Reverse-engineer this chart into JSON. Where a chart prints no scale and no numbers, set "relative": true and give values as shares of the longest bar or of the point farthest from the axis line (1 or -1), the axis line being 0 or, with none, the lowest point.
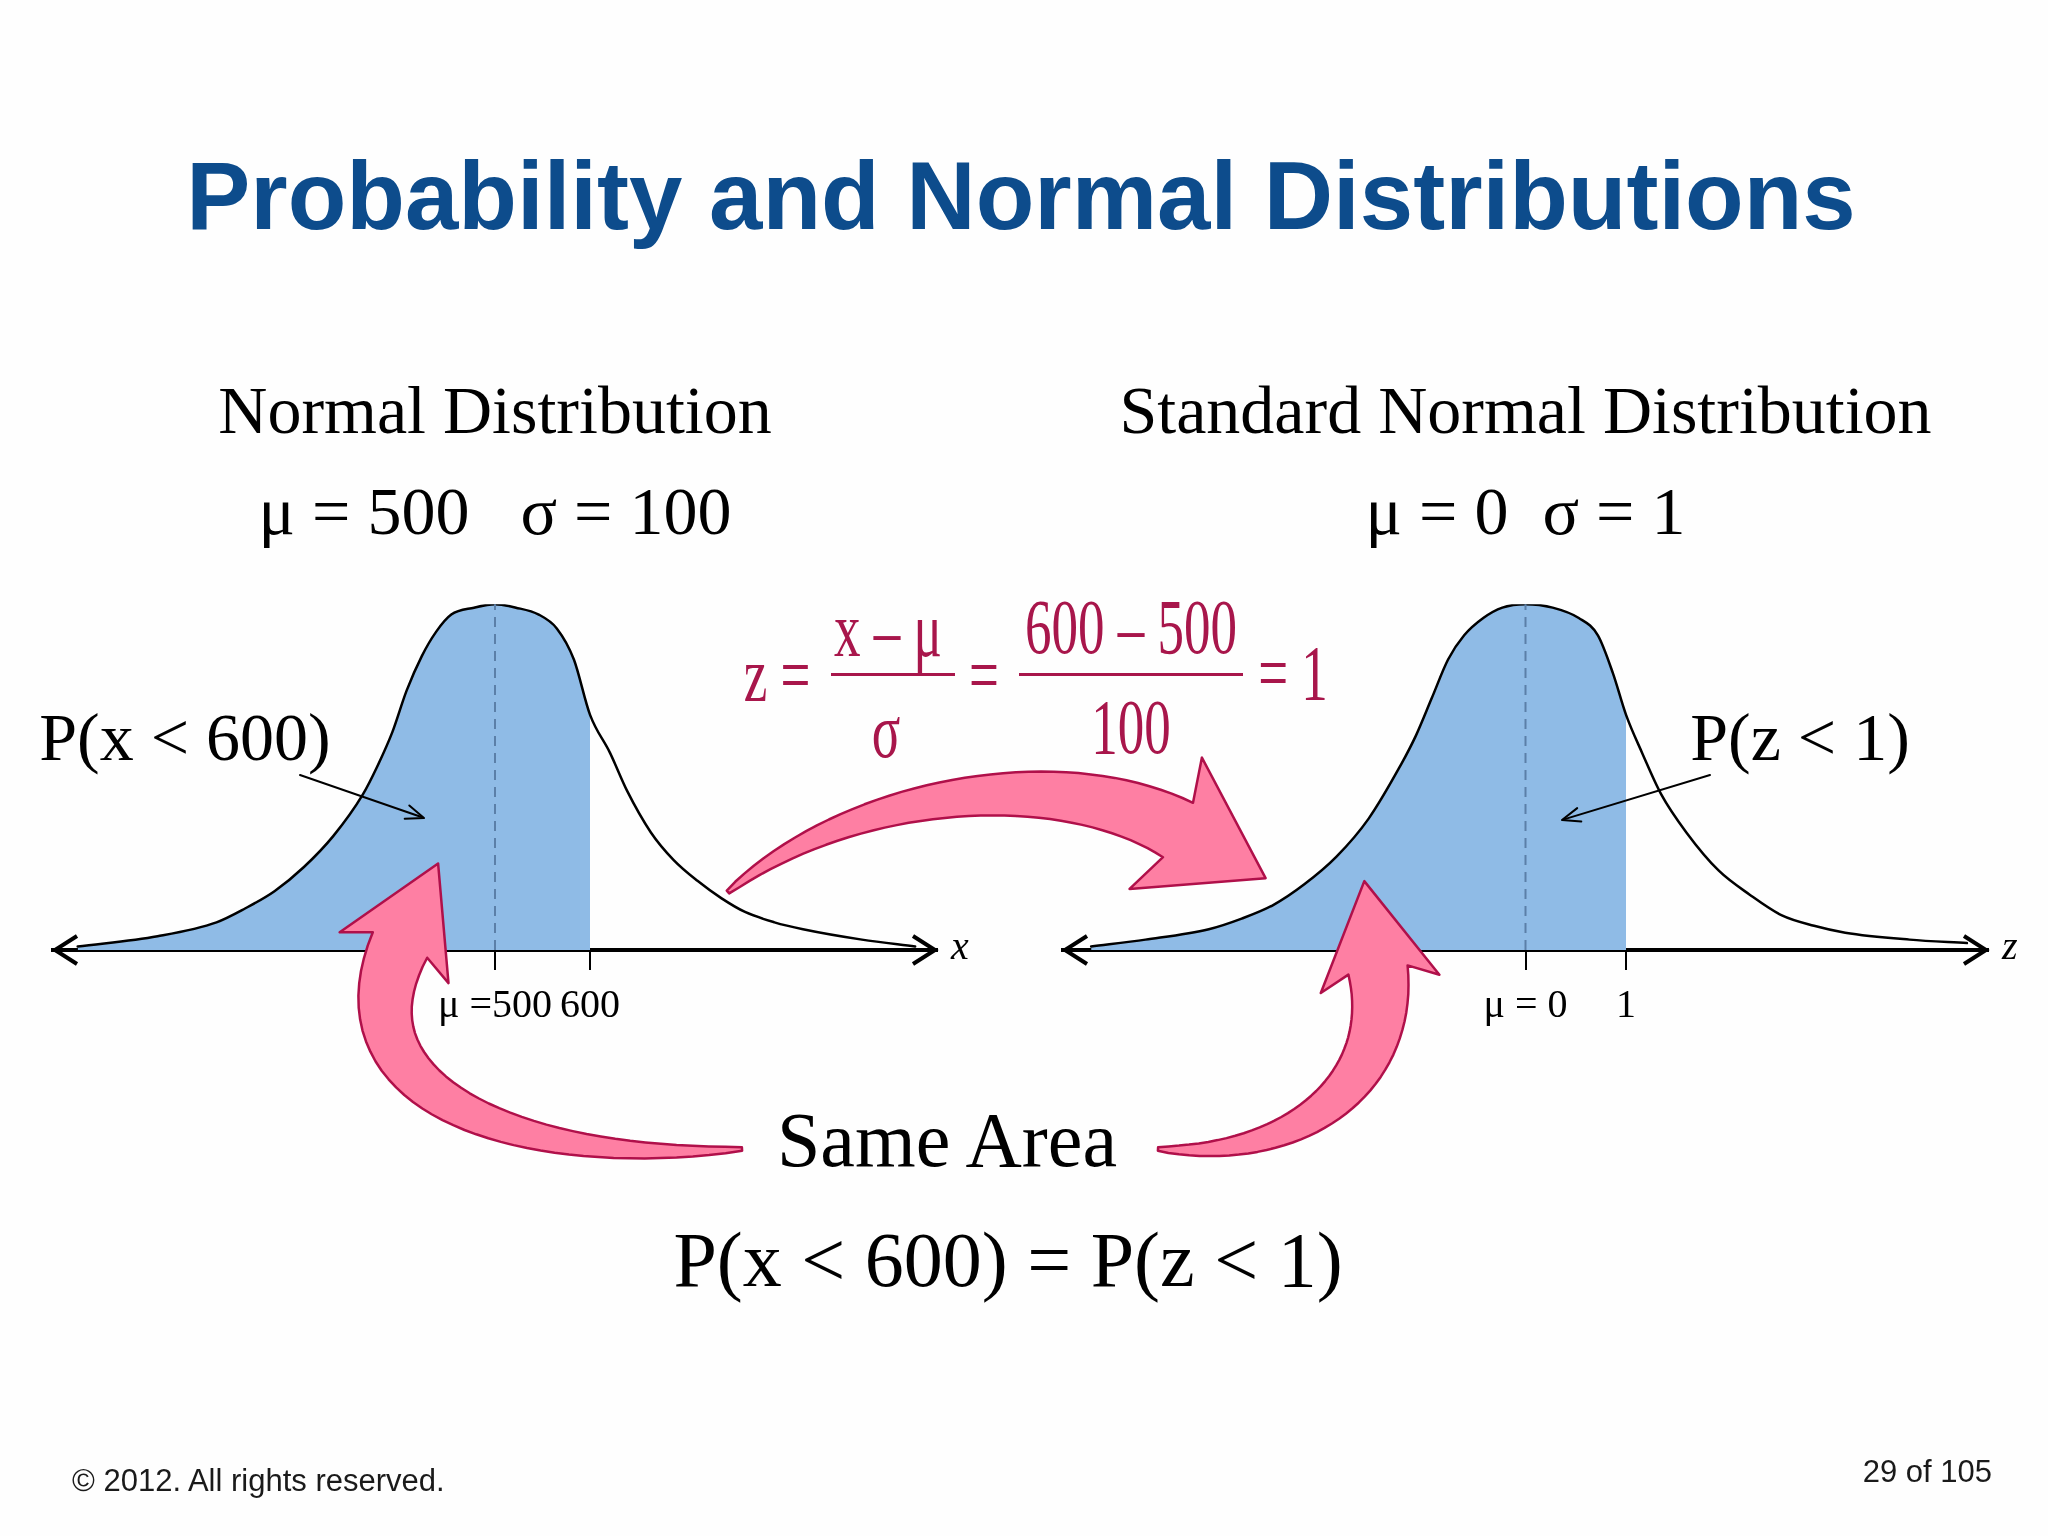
{
  "chart_data": [
    {
      "type": "other",
      "title": "Probability and Normal Distributions",
      "annotations": [
        "z =",
        "x – μ",
        "σ",
        "=",
        "600 – 500",
        "100",
        "= 1",
        "Same Area",
        "P(x < 600) = P(z < 1)",
        "© 2012. All rights reserved.",
        "29 of 105"
      ]
    },
    {
      "type": "area",
      "title": "Normal Distribution",
      "subtitle": "μ = 500   σ = 100",
      "xlabel": "x",
      "relative": true,
      "xlim": [
        35,
        965
      ],
      "xticks": [
        {
          "value": 500,
          "label": "μ =500"
        },
        600
      ],
      "series": [
        {
          "type": "area",
          "color": "#8fbbe6",
          "x": [
            61,
            145,
            207,
            237,
            268,
            299,
            330,
            361,
            376,
            392,
            407,
            423,
            438,
            454,
            478,
            500,
            522,
            546,
            565,
            583,
            600
          ],
          "values": [
            0.01,
            0.04,
            0.08,
            0.12,
            0.17,
            0.24,
            0.33,
            0.45,
            0.53,
            0.63,
            0.75,
            0.85,
            0.92,
            0.97,
            0.99,
            1,
            0.99,
            0.97,
            0.93,
            0.84,
            0.68
          ]
        },
        {
          "type": "line",
          "color": "#000000",
          "x": [
            61,
            145,
            207,
            237,
            268,
            299,
            330,
            361,
            376,
            392,
            407,
            423,
            438,
            454,
            478,
            500,
            522,
            546,
            565,
            583,
            600,
            621,
            639,
            664,
            688,
            713,
            738,
            763,
            794,
            824,
            886,
            942
          ],
          "values": [
            0.01,
            0.04,
            0.08,
            0.12,
            0.17,
            0.24,
            0.33,
            0.45,
            0.53,
            0.63,
            0.75,
            0.85,
            0.92,
            0.97,
            0.99,
            1,
            0.99,
            0.97,
            0.93,
            0.84,
            0.68,
            0.57,
            0.46,
            0.34,
            0.26,
            0.2,
            0.15,
            0.11,
            0.08,
            0.06,
            0.03,
            0.01
          ]
        }
      ],
      "ref_lines": [
        {
          "axis": "x",
          "value": 500,
          "color": "#5b7fa8",
          "line_style": "dashed"
        }
      ],
      "annotations": [
        "P(x < 600)"
      ]
    },
    {
      "type": "area",
      "title": "Standard Normal Distribution",
      "subtitle": "μ = 0  σ = 1",
      "xlabel": "z",
      "relative": true,
      "xlim": [
        -4.6,
        4.6
      ],
      "xticks": [
        {
          "value": 0,
          "label": "μ = 0"
        },
        1
      ],
      "series": [
        {
          "type": "area",
          "color": "#8fbbe6",
          "x": [
            -4.32,
            -3.78,
            -3.15,
            -2.83,
            -2.51,
            -2.2,
            -1.88,
            -1.56,
            -1.25,
            -1.09,
            -0.93,
            -0.77,
            -0.61,
            -0.42,
            -0.23,
            0,
            0.27,
            0.53,
            0.72,
            0.87,
            1
          ],
          "values": [
            0.01,
            0.03,
            0.06,
            0.09,
            0.13,
            0.19,
            0.27,
            0.38,
            0.53,
            0.62,
            0.73,
            0.84,
            0.91,
            0.96,
            0.99,
            1,
            0.99,
            0.96,
            0.91,
            0.8,
            0.68
          ]
        },
        {
          "type": "line",
          "color": "#000000",
          "x": [
            -4.32,
            -3.78,
            -3.15,
            -2.83,
            -2.51,
            -2.2,
            -1.88,
            -1.56,
            -1.25,
            -1.09,
            -0.93,
            -0.77,
            -0.61,
            -0.42,
            -0.23,
            0,
            0.27,
            0.53,
            0.72,
            0.87,
            1,
            1.16,
            1.35,
            1.6,
            1.92,
            2.23,
            2.55,
            2.87,
            3.18,
            3.82,
            4.39
          ],
          "values": [
            0.01,
            0.03,
            0.06,
            0.09,
            0.13,
            0.19,
            0.27,
            0.38,
            0.53,
            0.62,
            0.73,
            0.84,
            0.91,
            0.96,
            0.99,
            1,
            0.99,
            0.96,
            0.91,
            0.8,
            0.68,
            0.57,
            0.45,
            0.34,
            0.23,
            0.16,
            0.1,
            0.07,
            0.05,
            0.03,
            0.02
          ]
        }
      ],
      "ref_lines": [
        {
          "axis": "x",
          "value": 0,
          "color": "#5b7fa8",
          "line_style": "dashed"
        }
      ],
      "annotations": [
        "P(z < 1)"
      ]
    }
  ]
}
